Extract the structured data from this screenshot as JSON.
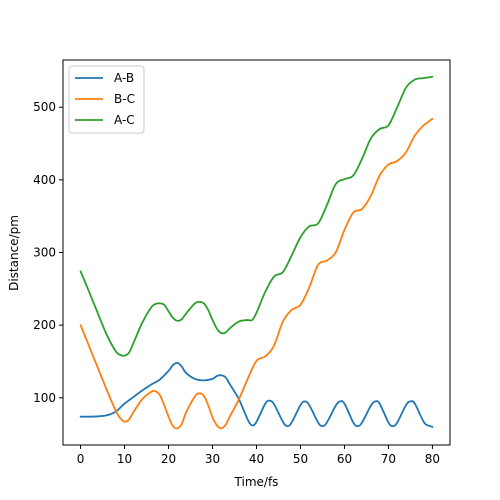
{
  "chart_data": {
    "type": "line",
    "xlabel": "Time/fs",
    "ylabel": "Distance/pm",
    "xlim": [
      -4,
      84
    ],
    "ylim": [
      35,
      565
    ],
    "xticks": [
      0,
      10,
      20,
      30,
      40,
      50,
      60,
      70,
      80
    ],
    "yticks": [
      100,
      200,
      300,
      400,
      500
    ],
    "grid": false,
    "legend_position": "top-left",
    "series": [
      {
        "name": "A-B",
        "color": "#1f77b4",
        "x": [
          0,
          2,
          4,
          6,
          8,
          10,
          12,
          14,
          16,
          18,
          20,
          21,
          22,
          23,
          24,
          26,
          28,
          30,
          31,
          32,
          33,
          34,
          36,
          38,
          39,
          40,
          42,
          43,
          44,
          46,
          47,
          48,
          50,
          51,
          52,
          54,
          55,
          56,
          58,
          59,
          60,
          62,
          63,
          64,
          66,
          67,
          68,
          70,
          71,
          72,
          74,
          75,
          76,
          78,
          79,
          80
        ],
        "y": [
          74,
          74,
          74.5,
          76,
          81,
          92,
          101,
          110,
          118,
          125,
          137,
          145,
          148,
          143,
          134,
          126,
          124,
          126,
          130,
          131,
          128,
          118,
          98,
          70,
          62,
          67,
          92,
          96,
          91,
          67,
          61,
          66,
          90,
          95,
          90,
          66,
          61,
          66,
          89,
          95,
          92,
          66,
          61,
          66,
          89,
          95,
          92,
          66,
          61,
          66,
          90,
          95,
          92,
          67,
          62,
          60
        ]
      },
      {
        "name": "B-C",
        "color": "#ff7f0e",
        "x": [
          0,
          2,
          4,
          6,
          8,
          9,
          10,
          11,
          12,
          14,
          16,
          17,
          18,
          19,
          20,
          21,
          22,
          23,
          24,
          26,
          27,
          28,
          29,
          30,
          31,
          32,
          33,
          34,
          36,
          38,
          40,
          42,
          44,
          46,
          48,
          50,
          52,
          54,
          56,
          58,
          60,
          62,
          64,
          66,
          68,
          70,
          72,
          74,
          76,
          78,
          80
        ],
        "y": [
          200,
          170,
          140,
          110,
          82,
          72,
          67,
          70,
          80,
          98,
          108,
          109,
          104,
          90,
          74,
          61,
          58,
          64,
          80,
          102,
          106,
          103,
          90,
          73,
          62,
          58,
          63,
          75,
          98,
          126,
          151,
          157,
          172,
          205,
          221,
          228,
          252,
          283,
          289,
          300,
          331,
          355,
          360,
          378,
          406,
          421,
          426,
          438,
          461,
          475,
          484
        ]
      },
      {
        "name": "A-C",
        "color": "#2ca02c",
        "x": [
          0,
          2,
          4,
          6,
          8,
          9,
          10,
          11,
          12,
          14,
          16,
          17,
          18,
          19,
          20,
          21,
          22,
          23,
          24,
          26,
          27,
          28,
          29,
          30,
          31,
          32,
          33,
          34,
          36,
          38,
          39,
          40,
          42,
          44,
          46,
          48,
          50,
          52,
          54,
          56,
          58,
          60,
          62,
          64,
          66,
          68,
          70,
          72,
          74,
          76,
          78,
          80
        ],
        "y": [
          274,
          245,
          215,
          186,
          164,
          159,
          158,
          162,
          175,
          203,
          224,
          229,
          230,
          228,
          219,
          210,
          206,
          208,
          216,
          230,
          232,
          230,
          221,
          207,
          195,
          189,
          190,
          196,
          205,
          207,
          207,
          217,
          246,
          267,
          273,
          296,
          321,
          336,
          340,
          365,
          394,
          401,
          406,
          429,
          457,
          470,
          475,
          500,
          527,
          538,
          540,
          542
        ]
      }
    ]
  }
}
